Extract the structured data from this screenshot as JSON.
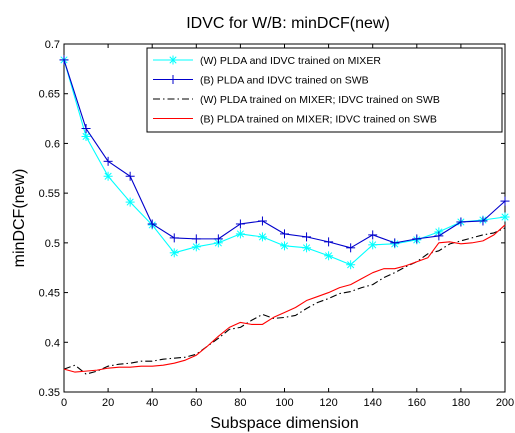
{
  "chart_data": {
    "type": "line",
    "title": "IDVC for W/B: minDCF(new)",
    "xlabel": "Subspace dimension",
    "ylabel": "minDCF(new)",
    "xlim": [
      0,
      200
    ],
    "ylim": [
      0.35,
      0.7
    ],
    "xticks": [
      "0",
      "20",
      "40",
      "60",
      "80",
      "100",
      "120",
      "140",
      "160",
      "180",
      "200"
    ],
    "yticks": [
      "0.35",
      "0.4",
      "0.45",
      "0.5",
      "0.55",
      "0.6",
      "0.65",
      "0.7"
    ],
    "grid": false,
    "legend_position": "top-right",
    "series": [
      {
        "name": "(W) PLDA and IDVC trained on MIXER",
        "color": "#00ffff",
        "line_style": "solid",
        "marker": "asterisk",
        "x": [
          0,
          10,
          20,
          30,
          40,
          50,
          60,
          70,
          80,
          90,
          100,
          110,
          120,
          130,
          140,
          150,
          160,
          170,
          180,
          190,
          200
        ],
        "y": [
          0.684,
          0.607,
          0.567,
          0.541,
          0.518,
          0.49,
          0.496,
          0.5,
          0.509,
          0.506,
          0.497,
          0.495,
          0.487,
          0.478,
          0.498,
          0.499,
          0.503,
          0.511,
          0.521,
          0.523,
          0.526
        ]
      },
      {
        "name": "(B) PLDA and IDVC trained on SWB",
        "color": "#0000cc",
        "line_style": "solid",
        "marker": "plus",
        "x": [
          0,
          10,
          20,
          30,
          40,
          50,
          60,
          70,
          80,
          90,
          100,
          110,
          120,
          130,
          140,
          150,
          160,
          170,
          180,
          190,
          200
        ],
        "y": [
          0.684,
          0.615,
          0.582,
          0.567,
          0.519,
          0.505,
          0.504,
          0.504,
          0.519,
          0.522,
          0.509,
          0.506,
          0.501,
          0.495,
          0.508,
          0.5,
          0.504,
          0.507,
          0.521,
          0.522,
          0.542
        ]
      },
      {
        "name": "(W) PLDA trained on MIXER; IDVC trained on SWB",
        "color": "#000000",
        "line_style": "dash-dot",
        "marker": "none",
        "x": [
          0,
          5,
          10,
          15,
          20,
          25,
          30,
          35,
          40,
          45,
          50,
          55,
          60,
          65,
          70,
          75,
          80,
          85,
          90,
          95,
          100,
          105,
          110,
          115,
          120,
          125,
          130,
          135,
          140,
          145,
          150,
          155,
          160,
          165,
          170,
          175,
          180,
          185,
          190,
          195,
          200
        ],
        "y": [
          0.373,
          0.377,
          0.368,
          0.371,
          0.376,
          0.378,
          0.379,
          0.381,
          0.381,
          0.383,
          0.384,
          0.385,
          0.388,
          0.396,
          0.404,
          0.413,
          0.415,
          0.422,
          0.428,
          0.424,
          0.425,
          0.427,
          0.434,
          0.44,
          0.444,
          0.449,
          0.451,
          0.455,
          0.458,
          0.465,
          0.47,
          0.476,
          0.481,
          0.489,
          0.492,
          0.499,
          0.502,
          0.505,
          0.508,
          0.51,
          0.515
        ]
      },
      {
        "name": "(B)  PLDA trained on MIXER; IDVC trained on SWB",
        "color": "#ff0000",
        "line_style": "solid",
        "marker": "none",
        "x": [
          0,
          5,
          10,
          15,
          20,
          25,
          30,
          35,
          40,
          45,
          50,
          55,
          60,
          65,
          70,
          75,
          80,
          85,
          90,
          95,
          100,
          105,
          110,
          115,
          120,
          125,
          130,
          135,
          140,
          145,
          150,
          155,
          160,
          165,
          170,
          175,
          180,
          185,
          190,
          195,
          200
        ],
        "y": [
          0.373,
          0.37,
          0.371,
          0.372,
          0.374,
          0.375,
          0.375,
          0.376,
          0.376,
          0.377,
          0.379,
          0.382,
          0.387,
          0.396,
          0.406,
          0.415,
          0.42,
          0.418,
          0.418,
          0.425,
          0.43,
          0.435,
          0.442,
          0.446,
          0.45,
          0.455,
          0.458,
          0.464,
          0.47,
          0.474,
          0.474,
          0.477,
          0.481,
          0.485,
          0.5,
          0.501,
          0.499,
          0.5,
          0.502,
          0.508,
          0.518
        ]
      }
    ]
  }
}
